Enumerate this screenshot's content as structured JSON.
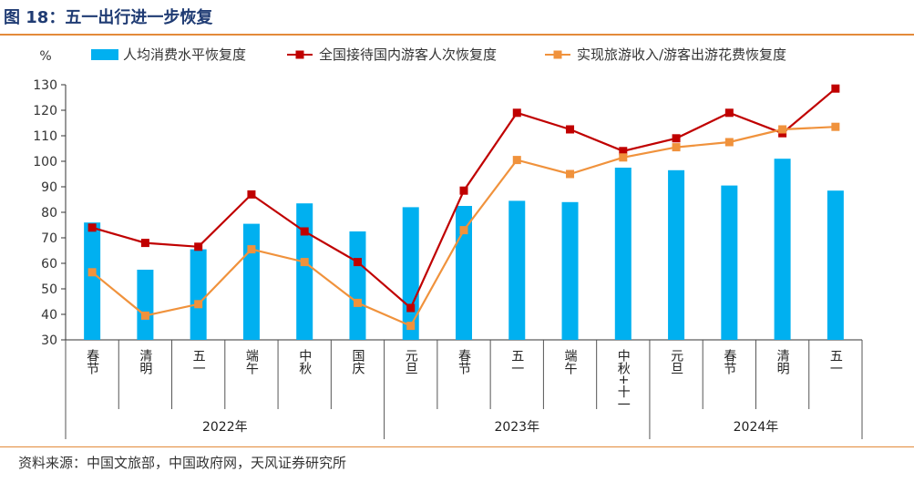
{
  "header": {
    "title": "图 18：五一出行进一步恢复"
  },
  "footer": {
    "source": "资料来源：中国文旅部，中国政府网，天风证券研究所"
  },
  "chart_data": {
    "type": "bar",
    "ylabel": "%",
    "ylim": [
      30,
      130
    ],
    "yticks": [
      30,
      40,
      50,
      60,
      70,
      80,
      90,
      100,
      110,
      120,
      130
    ],
    "categories": [
      "春节",
      "清明",
      "五一",
      "端午",
      "中秋",
      "国庆",
      "元旦",
      "春节",
      "五一",
      "端午",
      "中秋+十一",
      "元旦",
      "春节",
      "清明",
      "五一"
    ],
    "groups": [
      {
        "label": "2022年",
        "count": 6
      },
      {
        "label": "2023年",
        "count": 5
      },
      {
        "label": "2024年",
        "count": 4
      }
    ],
    "legend_position": "top",
    "grid": false,
    "series": [
      {
        "name": "人均消费水平恢复度",
        "kind": "bar",
        "color": "#00b0f0",
        "values": [
          76,
          57.5,
          65.5,
          75.5,
          83.5,
          72.5,
          82,
          82.5,
          84.5,
          84,
          97.5,
          96.5,
          90.5,
          101,
          88.5
        ]
      },
      {
        "name": "全国接待国内游客人次恢复度",
        "kind": "line",
        "color": "#c00000",
        "values": [
          74,
          68,
          66.5,
          87,
          72.5,
          60.5,
          42.5,
          88.5,
          119,
          112.5,
          104,
          109,
          119,
          111,
          128.5
        ]
      },
      {
        "name": "实现旅游收入/游客出游花费恢复度",
        "kind": "line",
        "color": "#f0923c",
        "values": [
          56.5,
          39.5,
          44,
          65.5,
          60.5,
          44.5,
          35.5,
          73,
          100.5,
          95,
          101.5,
          105.5,
          107.5,
          112.5,
          113.5
        ]
      }
    ]
  }
}
